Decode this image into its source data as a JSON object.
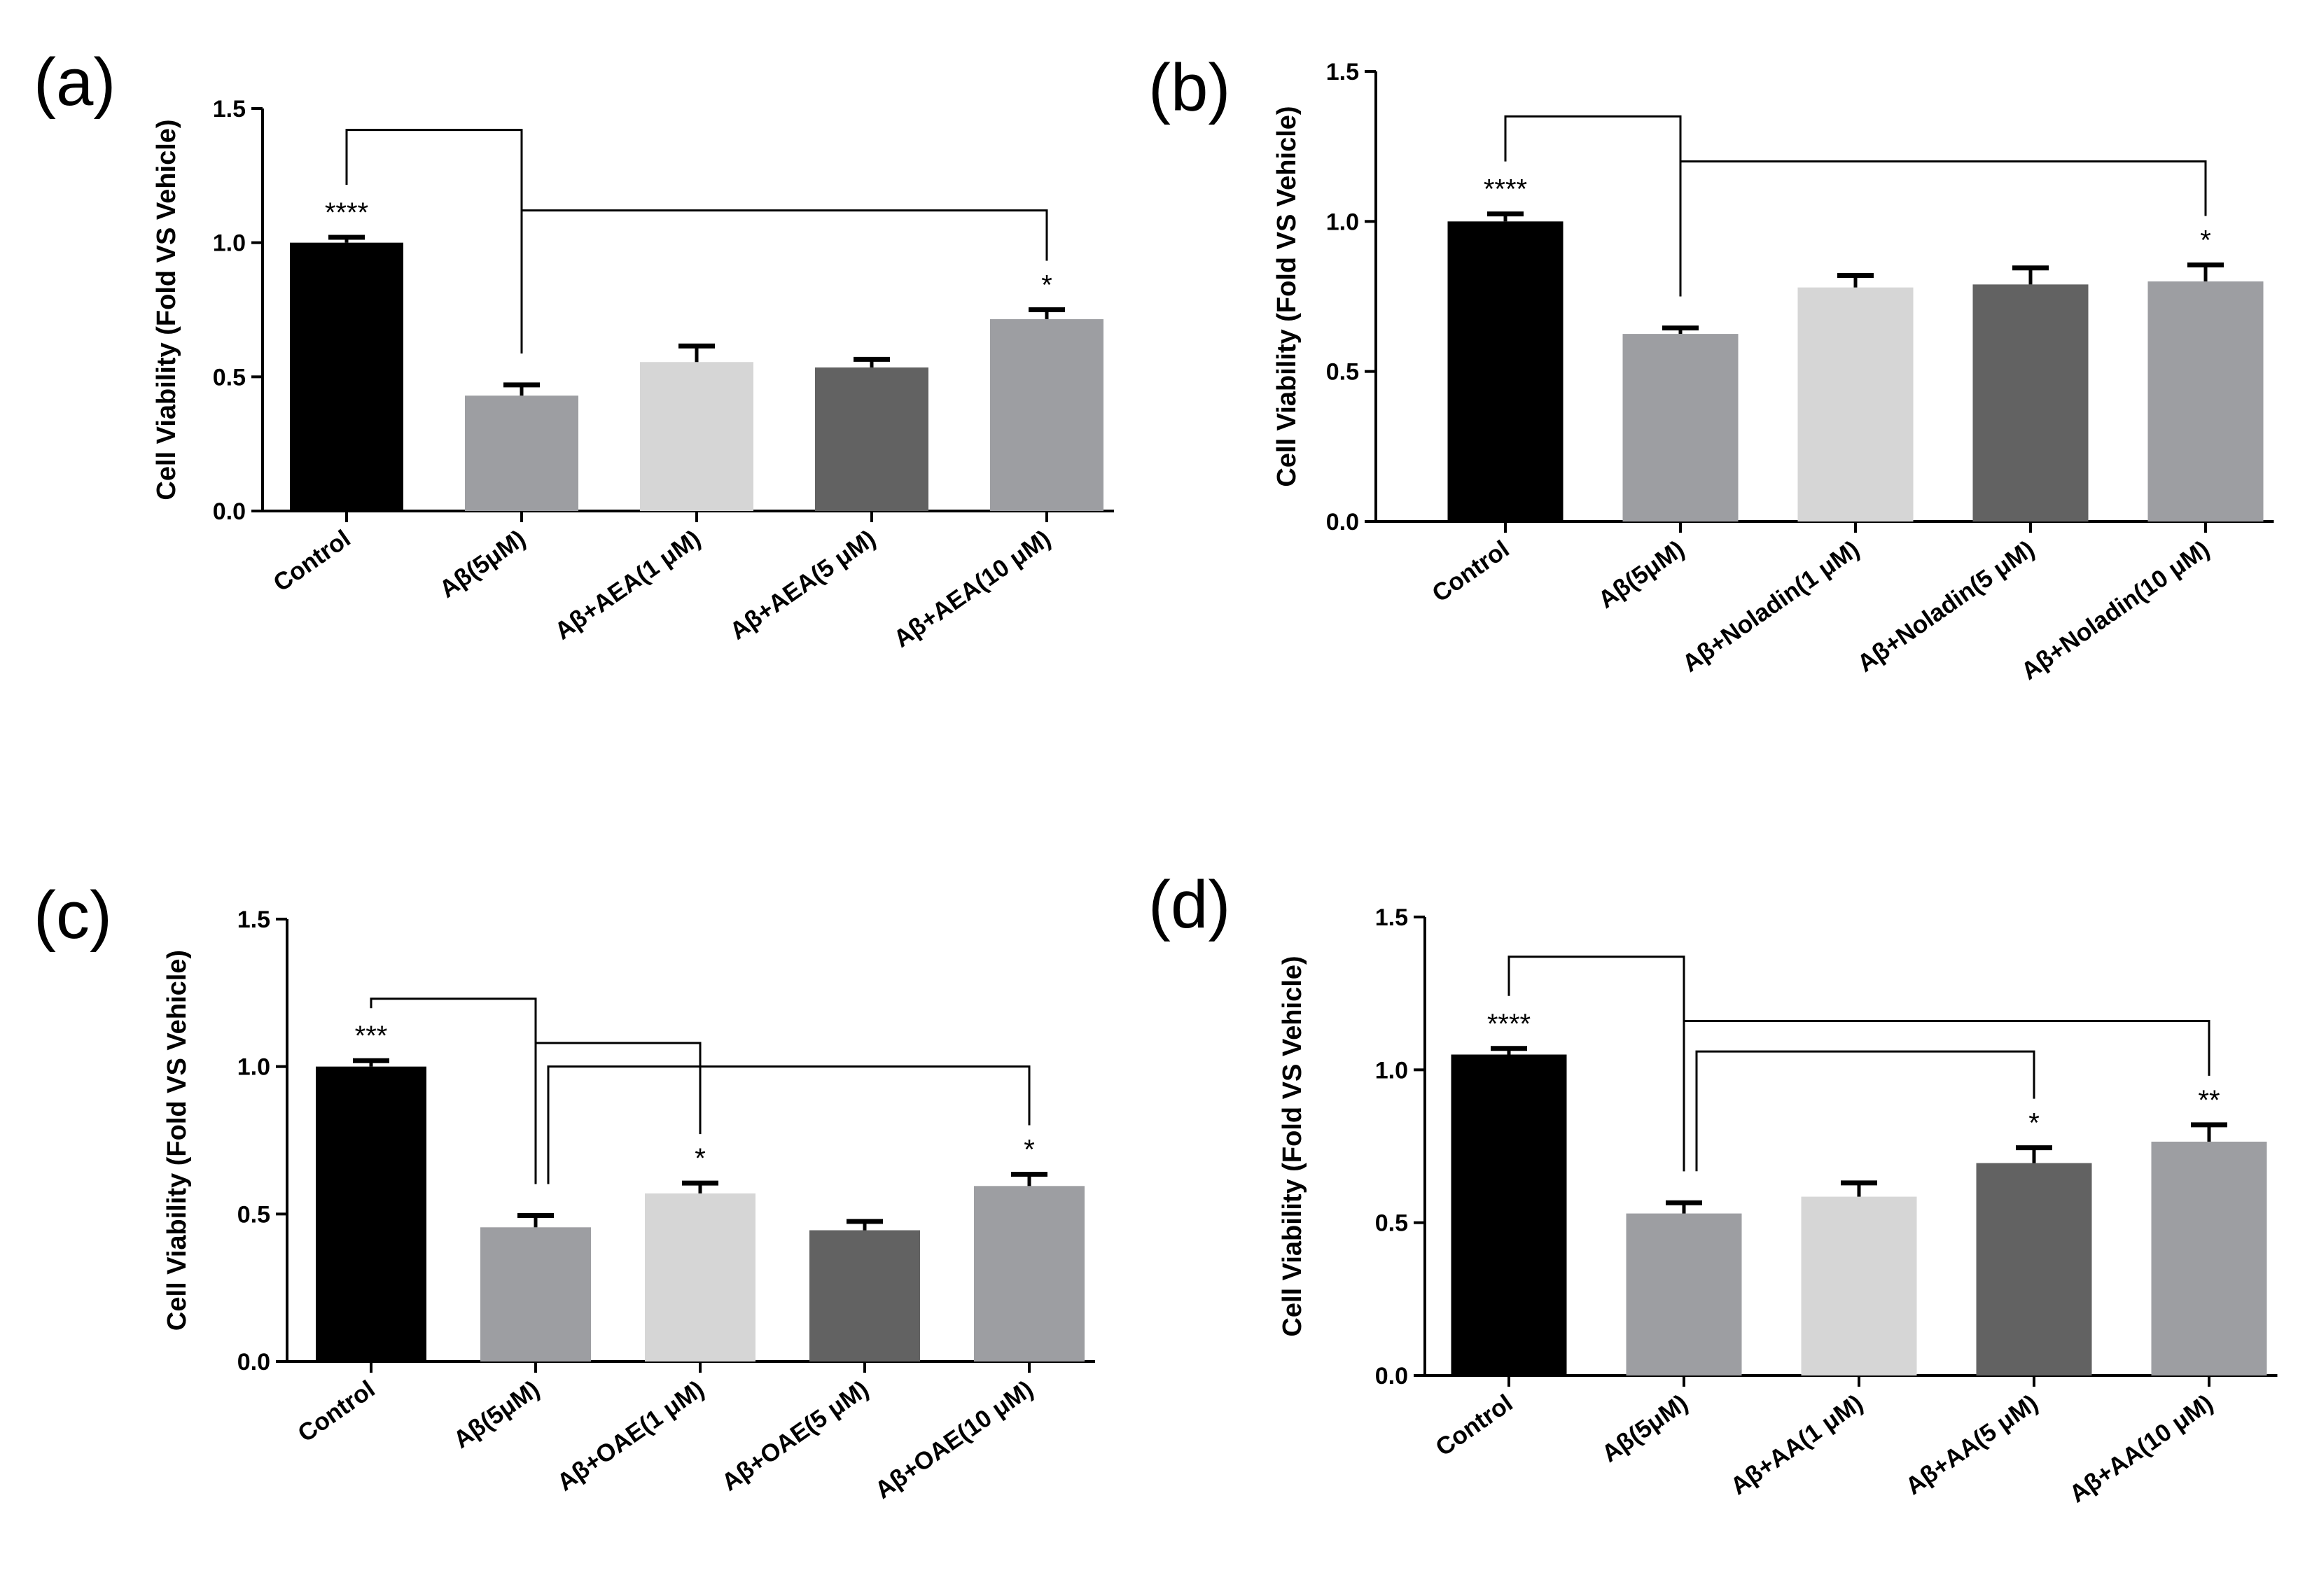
{
  "figure": {
    "colors": {
      "black": "#000000",
      "gray": "#9d9ea2",
      "light": "#d6d6d6",
      "dark": "#626262",
      "axis": "#000000"
    }
  },
  "chart_data": [
    {
      "panel": "(a)",
      "type": "bar",
      "title": "",
      "xlabel": "",
      "ylabel": "Cell Viability (Fold VS Vehicle)",
      "ylim": [
        0,
        1.5
      ],
      "yticks": [
        "0.0",
        "0.5",
        "1.0",
        "1.5"
      ],
      "categories": [
        "Control",
        "Aβ(5μM)",
        "Aβ+AEA(1 μM)",
        "Aβ+AEA(5 μM)",
        "Aβ+AEA(10 μM)"
      ],
      "values": [
        1.0,
        0.43,
        0.555,
        0.535,
        0.715
      ],
      "errors": [
        0.02,
        0.04,
        0.06,
        0.03,
        0.035
      ],
      "bar_colors": [
        "black",
        "gray",
        "light",
        "dark",
        "gray"
      ],
      "significance": [
        {
          "category_index": 0,
          "label": "****"
        },
        {
          "category_index": 4,
          "label": "*"
        }
      ],
      "brackets": [
        {
          "from": 0,
          "to": 1,
          "height": 1.42
        },
        {
          "from": 1,
          "to": 4,
          "height": 1.12
        }
      ]
    },
    {
      "panel": "(b)",
      "type": "bar",
      "title": "",
      "xlabel": "",
      "ylabel": "Cell Viability (Fold VS Vehicle)",
      "ylim": [
        0,
        1.5
      ],
      "yticks": [
        "0.0",
        "0.5",
        "1.0",
        "1.5"
      ],
      "categories": [
        "Control",
        "Aβ(5μM)",
        "Aβ+Noladin(1 μM)",
        "Aβ+Noladin(5 μM)",
        "Aβ+Noladin(10 μM)"
      ],
      "values": [
        1.0,
        0.625,
        0.78,
        0.79,
        0.8
      ],
      "errors": [
        0.025,
        0.02,
        0.04,
        0.055,
        0.055
      ],
      "bar_colors": [
        "black",
        "gray",
        "light",
        "dark",
        "gray"
      ],
      "significance": [
        {
          "category_index": 0,
          "label": "****"
        },
        {
          "category_index": 4,
          "label": "*"
        }
      ],
      "brackets": [
        {
          "from": 0,
          "to": 1,
          "height": 1.35
        },
        {
          "from": 1,
          "to": 4,
          "height": 1.2
        }
      ]
    },
    {
      "panel": "(c)",
      "type": "bar",
      "title": "",
      "xlabel": "",
      "ylabel": "Cell Viability (Fold VS Vehicle)",
      "ylim": [
        0,
        1.5
      ],
      "yticks": [
        "0.0",
        "0.5",
        "1.0",
        "1.5"
      ],
      "categories": [
        "Control",
        "Aβ(5μM)",
        "Aβ+OAE(1 μM)",
        "Aβ+OAE(5 μM)",
        "Aβ+OAE(10 μM)"
      ],
      "values": [
        1.0,
        0.455,
        0.57,
        0.445,
        0.595
      ],
      "errors": [
        0.02,
        0.04,
        0.035,
        0.03,
        0.04
      ],
      "bar_colors": [
        "black",
        "gray",
        "light",
        "dark",
        "gray"
      ],
      "significance": [
        {
          "category_index": 0,
          "label": "***"
        },
        {
          "category_index": 2,
          "label": "*"
        },
        {
          "category_index": 4,
          "label": "*"
        }
      ],
      "brackets": [
        {
          "from": 0,
          "to": 1,
          "height": 1.23
        },
        {
          "from": 1,
          "to": 2,
          "height": 1.08
        },
        {
          "from": 1,
          "to": 4,
          "height": 1.0
        }
      ]
    },
    {
      "panel": "(d)",
      "type": "bar",
      "title": "",
      "xlabel": "",
      "ylabel": "Cell Viability (Fold VS Vehicle)",
      "ylim": [
        0,
        1.5
      ],
      "yticks": [
        "0.0",
        "0.5",
        "1.0",
        "1.5"
      ],
      "categories": [
        "Control",
        "Aβ(5μM)",
        "Aβ+AA(1 μM)",
        "Aβ+AA(5 μM)",
        "Aβ+AA(10 μM)"
      ],
      "values": [
        1.05,
        0.53,
        0.585,
        0.695,
        0.765
      ],
      "errors": [
        0.02,
        0.035,
        0.045,
        0.05,
        0.055
      ],
      "bar_colors": [
        "black",
        "gray",
        "light",
        "dark",
        "gray"
      ],
      "significance": [
        {
          "category_index": 0,
          "label": "****"
        },
        {
          "category_index": 3,
          "label": "*"
        },
        {
          "category_index": 4,
          "label": "**"
        }
      ],
      "brackets": [
        {
          "from": 0,
          "to": 1,
          "height": 1.37
        },
        {
          "from": 1,
          "to": 4,
          "height": 1.16
        },
        {
          "from": 1,
          "to": 3,
          "height": 1.06
        }
      ]
    }
  ]
}
